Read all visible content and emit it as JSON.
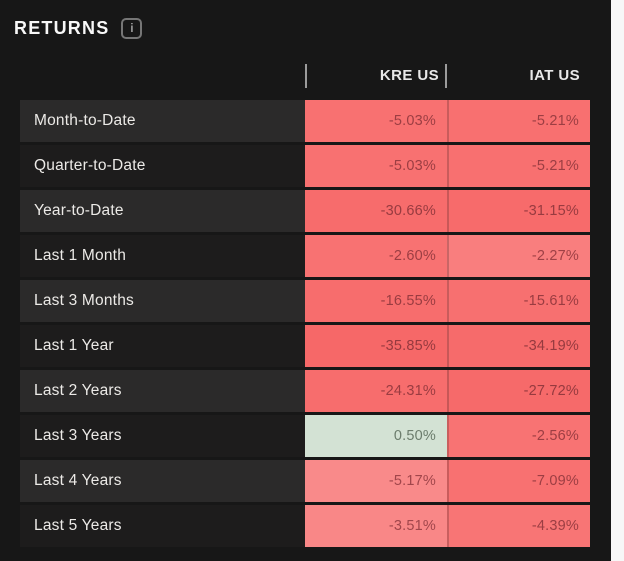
{
  "header": {
    "title": "RETURNS",
    "info_icon_glyph": "i"
  },
  "table": {
    "columns": [
      "KRE US",
      "IAT US"
    ],
    "rows": [
      {
        "label": "Month-to-Date",
        "cells": [
          {
            "text": "-5.03%",
            "bg": "#f87171",
            "fg": "#9c3e43"
          },
          {
            "text": "-5.21%",
            "bg": "#f87070",
            "fg": "#9c3e43"
          }
        ]
      },
      {
        "label": "Quarter-to-Date",
        "cells": [
          {
            "text": "-5.03%",
            "bg": "#f87171",
            "fg": "#9c3e43"
          },
          {
            "text": "-5.21%",
            "bg": "#f87070",
            "fg": "#9c3e43"
          }
        ]
      },
      {
        "label": "Year-to-Date",
        "cells": [
          {
            "text": "-30.66%",
            "bg": "#f76c6c",
            "fg": "#983b40"
          },
          {
            "text": "-31.15%",
            "bg": "#f76b6b",
            "fg": "#983b40"
          }
        ]
      },
      {
        "label": "Last 1 Month",
        "cells": [
          {
            "text": "-2.60%",
            "bg": "#f87272",
            "fg": "#9c3e43"
          },
          {
            "text": "-2.27%",
            "bg": "#f97e7e",
            "fg": "#9f4146"
          }
        ]
      },
      {
        "label": "Last 3 Months",
        "cells": [
          {
            "text": "-16.55%",
            "bg": "#f76d6d",
            "fg": "#9a3c41"
          },
          {
            "text": "-15.61%",
            "bg": "#f77070",
            "fg": "#9a3c41"
          }
        ]
      },
      {
        "label": "Last 1 Year",
        "cells": [
          {
            "text": "-35.85%",
            "bg": "#f66868",
            "fg": "#963a3f"
          },
          {
            "text": "-34.19%",
            "bg": "#f66b6b",
            "fg": "#963a3f"
          }
        ]
      },
      {
        "label": "Last 2 Years",
        "cells": [
          {
            "text": "-24.31%",
            "bg": "#f76d6d",
            "fg": "#9a3c41"
          },
          {
            "text": "-27.72%",
            "bg": "#f66a6a",
            "fg": "#963a3f"
          }
        ]
      },
      {
        "label": "Last 3 Years",
        "cells": [
          {
            "text": "0.50%",
            "bg": "#d3e2d4",
            "fg": "#6b7c6c"
          },
          {
            "text": "-2.56%",
            "bg": "#f87373",
            "fg": "#9c3e43"
          }
        ]
      },
      {
        "label": "Last 4 Years",
        "cells": [
          {
            "text": "-5.17%",
            "bg": "#f98a8a",
            "fg": "#a1464b"
          },
          {
            "text": "-7.09%",
            "bg": "#f87171",
            "fg": "#9c3e43"
          }
        ]
      },
      {
        "label": "Last 5 Years",
        "cells": [
          {
            "text": "-3.51%",
            "bg": "#f98787",
            "fg": "#a1464b"
          },
          {
            "text": "-4.39%",
            "bg": "#f87575",
            "fg": "#9c3e43"
          }
        ]
      }
    ]
  },
  "colors": {
    "panel_bg": "#171717",
    "row_alt_bg": "#2b2a2a",
    "row_bg": "#1d1c1c",
    "negative_cell": "#f87070",
    "positive_cell": "#d3e2d4",
    "header_text": "#e8e8e8",
    "separator_bar": "#9b9b9b"
  }
}
